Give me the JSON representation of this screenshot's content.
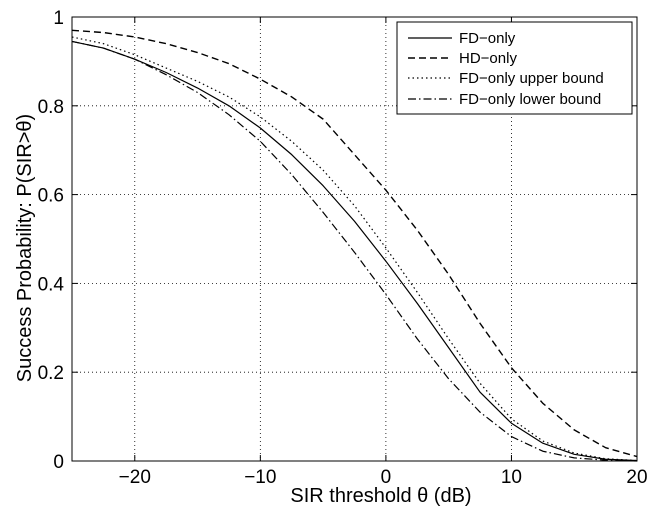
{
  "chart_data": {
    "type": "line",
    "title": "",
    "xlabel": "SIR threshold θ (dB)",
    "ylabel": "Success Probability: P(SIR>θ)",
    "xlim": [
      -25,
      20
    ],
    "ylim": [
      0,
      1
    ],
    "grid": true,
    "legend_position": "top-right",
    "x_ticks": [
      -20,
      -10,
      0,
      10,
      20
    ],
    "x_tick_labels": [
      "−20",
      "−10",
      "0",
      "10",
      "20"
    ],
    "y_ticks": [
      0,
      0.2,
      0.4,
      0.6,
      0.8,
      1
    ],
    "y_tick_labels": [
      "0",
      "0.2",
      "0.4",
      "0.6",
      "0.8",
      "1"
    ],
    "x": [
      -25,
      -22.5,
      -20,
      -17.5,
      -15,
      -12.5,
      -10,
      -7.5,
      -5,
      -2.5,
      0,
      2.5,
      5,
      7.5,
      10,
      12.5,
      15,
      17.5,
      20
    ],
    "series": [
      {
        "name": "FD−only",
        "style": "solid",
        "values": [
          0.945,
          0.93,
          0.905,
          0.875,
          0.84,
          0.8,
          0.75,
          0.69,
          0.62,
          0.54,
          0.45,
          0.355,
          0.255,
          0.155,
          0.085,
          0.04,
          0.015,
          0.004,
          0.001
        ]
      },
      {
        "name": "HD−only",
        "style": "dashed",
        "values": [
          0.97,
          0.965,
          0.955,
          0.94,
          0.92,
          0.895,
          0.86,
          0.82,
          0.77,
          0.69,
          0.61,
          0.52,
          0.42,
          0.31,
          0.21,
          0.13,
          0.07,
          0.03,
          0.01
        ]
      },
      {
        "name": "FD−only upper bound",
        "style": "dotted",
        "values": [
          0.955,
          0.94,
          0.915,
          0.885,
          0.855,
          0.82,
          0.775,
          0.72,
          0.655,
          0.575,
          0.48,
          0.38,
          0.275,
          0.175,
          0.095,
          0.045,
          0.018,
          0.005,
          0.001
        ]
      },
      {
        "name": "FD−only lower bound",
        "style": "dashdot",
        "values": [
          0.945,
          0.93,
          0.905,
          0.87,
          0.83,
          0.78,
          0.72,
          0.645,
          0.56,
          0.47,
          0.375,
          0.275,
          0.185,
          0.11,
          0.055,
          0.022,
          0.007,
          0.002,
          0.0
        ]
      }
    ]
  }
}
